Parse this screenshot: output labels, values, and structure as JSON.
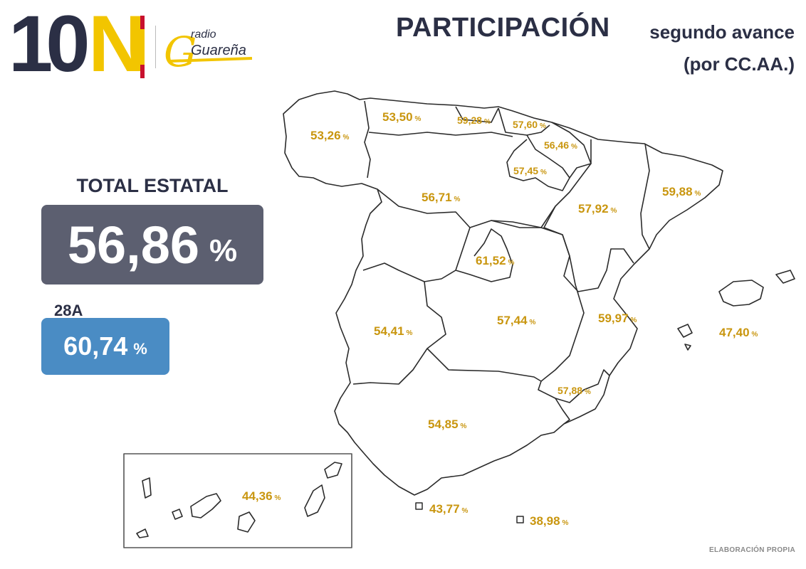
{
  "logo": {
    "number": "10",
    "letter": "N",
    "radio_word": "radio",
    "radio_name": "Guareña"
  },
  "title": "PARTICIPACIÓN",
  "subtitle_line1": "segundo avance",
  "subtitle_line2": "(por CC.AA.)",
  "total": {
    "label": "TOTAL ESTATAL",
    "value": "56,86",
    "unit": "%"
  },
  "previous": {
    "label": "28A",
    "value": "60,74",
    "unit": "%"
  },
  "pct_symbol": "%",
  "regions": [
    {
      "value": "53,26"
    },
    {
      "value": "53,50"
    },
    {
      "value": "59,28"
    },
    {
      "value": "57,60"
    },
    {
      "value": "56,46"
    },
    {
      "value": "57,45"
    },
    {
      "value": "56,71"
    },
    {
      "value": "57,92"
    },
    {
      "value": "59,88"
    },
    {
      "value": "61,52"
    },
    {
      "value": "54,41"
    },
    {
      "value": "57,44"
    },
    {
      "value": "59,97"
    },
    {
      "value": "47,40"
    },
    {
      "value": "57,88"
    },
    {
      "value": "54,85"
    },
    {
      "value": "44,36"
    },
    {
      "value": "43,77"
    },
    {
      "value": "38,98"
    }
  ],
  "source": "ELABORACIÓN PROPIA",
  "colors": {
    "dark": "#2b2f45",
    "gold": "#c9960f",
    "total_box": "#5c5f70",
    "previous_box": "#4a8cc4",
    "yellow": "#f2c500",
    "red": "#c8102e"
  }
}
